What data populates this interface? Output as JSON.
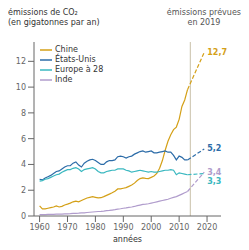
{
  "chart_data": {
    "type": "line",
    "ylabel": "émissions de CO₂\n(en gigatonnes par an)",
    "annotations": [
      {
        "text": "émissions prévues\nen 2019"
      }
    ],
    "xlabel": "années",
    "xlim": [
      1958,
      2025
    ],
    "ylim": [
      0,
      13.5
    ],
    "xticks": [
      1960,
      1970,
      1980,
      1990,
      2000,
      2010,
      2020
    ],
    "yticks": [
      0,
      2,
      4,
      6,
      8,
      10,
      12
    ],
    "legend": "upper left",
    "reference_lines": [
      {
        "x": 2014
      }
    ],
    "x": [
      1960,
      1961,
      1962,
      1963,
      1964,
      1965,
      1966,
      1967,
      1968,
      1969,
      1970,
      1971,
      1972,
      1973,
      1974,
      1975,
      1976,
      1977,
      1978,
      1979,
      1980,
      1981,
      1982,
      1983,
      1984,
      1985,
      1986,
      1987,
      1988,
      1989,
      1990,
      1991,
      1992,
      1993,
      1994,
      1995,
      1996,
      1997,
      1998,
      1999,
      2000,
      2001,
      2002,
      2003,
      2004,
      2005,
      2006,
      2007,
      2008,
      2009,
      2010,
      2011,
      2012,
      2013
    ],
    "series": [
      {
        "name": "Chine",
        "color": "#d4a017",
        "line_style": "solid",
        "values": [
          0.78,
          0.55,
          0.55,
          0.6,
          0.65,
          0.7,
          0.78,
          0.7,
          0.75,
          0.85,
          0.92,
          1.0,
          1.1,
          1.15,
          1.1,
          1.2,
          1.3,
          1.4,
          1.45,
          1.5,
          1.45,
          1.4,
          1.42,
          1.5,
          1.6,
          1.7,
          1.8,
          1.92,
          2.1,
          2.1,
          2.15,
          2.2,
          2.3,
          2.4,
          2.55,
          2.75,
          2.9,
          2.95,
          2.92,
          2.9,
          3.0,
          3.1,
          3.3,
          3.7,
          4.3,
          5.1,
          5.8,
          6.3,
          6.7,
          6.9,
          7.5,
          8.5,
          9.0,
          9.8
        ]
      },
      {
        "name": "États-Unis",
        "color": "#2c6ca8",
        "line_style": "solid",
        "values": [
          2.85,
          2.8,
          2.95,
          3.05,
          3.15,
          3.3,
          3.45,
          3.5,
          3.65,
          3.8,
          3.9,
          3.9,
          4.1,
          4.2,
          3.95,
          3.8,
          4.1,
          4.25,
          4.35,
          4.4,
          4.3,
          4.15,
          4.0,
          4.0,
          4.2,
          4.3,
          4.3,
          4.35,
          4.6,
          4.65,
          4.6,
          4.5,
          4.6,
          4.65,
          4.8,
          4.9,
          5.0,
          5.05,
          4.95,
          5.0,
          5.05,
          4.9,
          4.9,
          4.95,
          5.0,
          5.05,
          4.95,
          4.95,
          4.7,
          4.35,
          4.65,
          4.55,
          4.35,
          4.35
        ]
      },
      {
        "name": "Europe à 28",
        "color": "#3ab8c0",
        "line_style": "solid",
        "values": [
          2.7,
          2.75,
          2.85,
          2.9,
          3.0,
          3.1,
          3.2,
          3.25,
          3.4,
          3.5,
          3.6,
          3.6,
          3.7,
          3.75,
          3.65,
          3.45,
          3.6,
          3.65,
          3.7,
          3.75,
          3.65,
          3.45,
          3.35,
          3.35,
          3.45,
          3.5,
          3.55,
          3.55,
          3.65,
          3.65,
          3.65,
          3.55,
          3.5,
          3.4,
          3.45,
          3.5,
          3.55,
          3.5,
          3.45,
          3.4,
          3.45,
          3.4,
          3.4,
          3.45,
          3.5,
          3.55,
          3.55,
          3.6,
          3.55,
          3.2,
          3.35,
          3.3,
          3.25,
          3.2
        ]
      },
      {
        "name": "Inde",
        "color": "#b09ccc",
        "line_style": "solid",
        "values": [
          0.1,
          0.1,
          0.1,
          0.12,
          0.12,
          0.13,
          0.14,
          0.14,
          0.15,
          0.16,
          0.17,
          0.18,
          0.2,
          0.21,
          0.22,
          0.24,
          0.25,
          0.27,
          0.29,
          0.31,
          0.33,
          0.35,
          0.36,
          0.38,
          0.41,
          0.43,
          0.46,
          0.49,
          0.53,
          0.56,
          0.6,
          0.63,
          0.67,
          0.7,
          0.74,
          0.8,
          0.85,
          0.9,
          0.92,
          0.95,
          1.0,
          1.05,
          1.1,
          1.15,
          1.2,
          1.25,
          1.3,
          1.38,
          1.45,
          1.5,
          1.6,
          1.7,
          1.8,
          1.9
        ]
      },
      {
        "color": "#d4a017",
        "line_style": "dashed",
        "x": [
          2013,
          2019
        ],
        "values": [
          9.8,
          12.7
        ],
        "data_labels": true,
        "value_labels": [
          null,
          "12,7"
        ]
      },
      {
        "color": "#2c6ca8",
        "line_style": "dashed",
        "x": [
          2013,
          2019
        ],
        "values": [
          4.35,
          5.2
        ],
        "data_labels": true,
        "value_labels": [
          null,
          "5,2"
        ]
      },
      {
        "color": "#3ab8c0",
        "line_style": "dashed",
        "x": [
          2013,
          2019
        ],
        "values": [
          3.2,
          3.3
        ],
        "data_labels": true,
        "value_labels": [
          null,
          "3,3"
        ]
      },
      {
        "color": "#b09ccc",
        "line_style": "dashed",
        "x": [
          2013,
          2019
        ],
        "values": [
          1.9,
          3.4
        ],
        "data_labels": true,
        "value_labels": [
          null,
          "3,4"
        ]
      }
    ]
  }
}
